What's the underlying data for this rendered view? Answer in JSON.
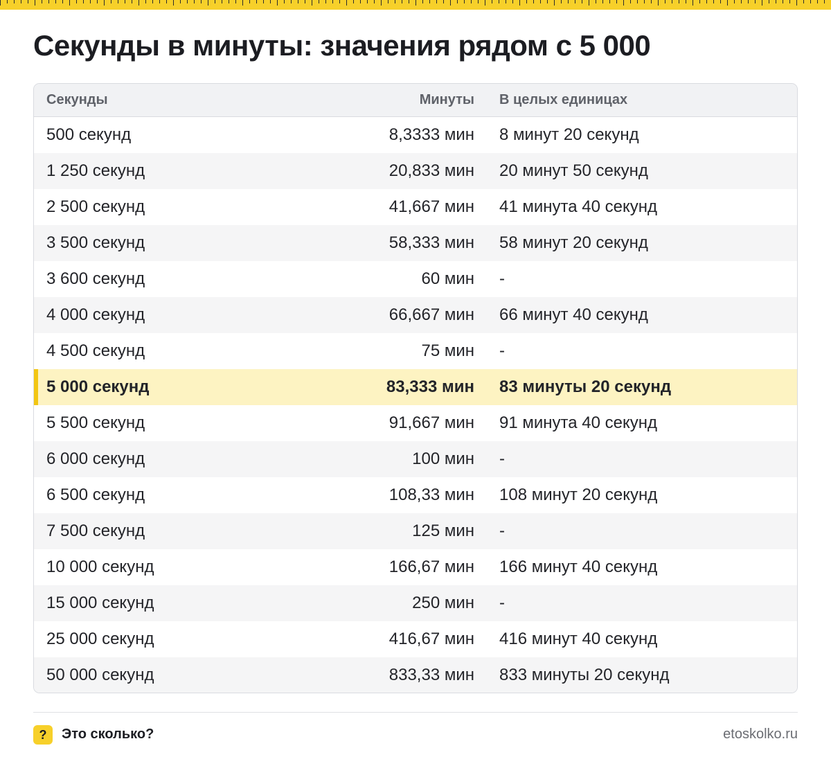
{
  "title": "Секунды в минуты: значения рядом с 5 000",
  "table": {
    "headers": {
      "seconds": "Секунды",
      "minutes": "Минуты",
      "whole": "В целых единицах"
    },
    "rows": [
      {
        "seconds": "500 секунд",
        "minutes": "8,3333 мин",
        "whole": "8 минут 20 секунд"
      },
      {
        "seconds": "1 250 секунд",
        "minutes": "20,833 мин",
        "whole": "20 минут 50 секунд"
      },
      {
        "seconds": "2 500 секунд",
        "minutes": "41,667 мин",
        "whole": "41 минута 40 секунд"
      },
      {
        "seconds": "3 500 секунд",
        "minutes": "58,333 мин",
        "whole": "58 минут 20 секунд"
      },
      {
        "seconds": "3 600 секунд",
        "minutes": "60 мин",
        "whole": "-"
      },
      {
        "seconds": "4 000 секунд",
        "minutes": "66,667 мин",
        "whole": "66 минут 40 секунд"
      },
      {
        "seconds": "4 500 секунд",
        "minutes": "75 мин",
        "whole": "-"
      },
      {
        "seconds": "5 000 секунд",
        "minutes": "83,333 мин",
        "whole": "83 минуты 20 секунд",
        "highlighted": true
      },
      {
        "seconds": "5 500 секунд",
        "minutes": "91,667 мин",
        "whole": "91 минута 40 секунд"
      },
      {
        "seconds": "6 000 секунд",
        "minutes": "100 мин",
        "whole": "-"
      },
      {
        "seconds": "6 500 секунд",
        "minutes": "108,33 мин",
        "whole": "108 минут 20 секунд"
      },
      {
        "seconds": "7 500 секунд",
        "minutes": "125 мин",
        "whole": "-"
      },
      {
        "seconds": "10 000 секунд",
        "minutes": "166,67 мин",
        "whole": "166 минут 40 секунд"
      },
      {
        "seconds": "15 000 секунд",
        "minutes": "250 мин",
        "whole": "-"
      },
      {
        "seconds": "25 000 секунд",
        "minutes": "416,67 мин",
        "whole": "416 минут 40 секунд"
      },
      {
        "seconds": "50 000 секунд",
        "minutes": "833,33 мин",
        "whole": "833 минуты 20 секунд"
      }
    ]
  },
  "footer": {
    "badge_glyph": "?",
    "brand": "Это сколько?",
    "domain": "etoskolko.ru"
  },
  "colors": {
    "accent": "#f7d02a",
    "highlight_row": "#fdf3c2",
    "text": "#1f2128",
    "muted": "#5f6269"
  }
}
